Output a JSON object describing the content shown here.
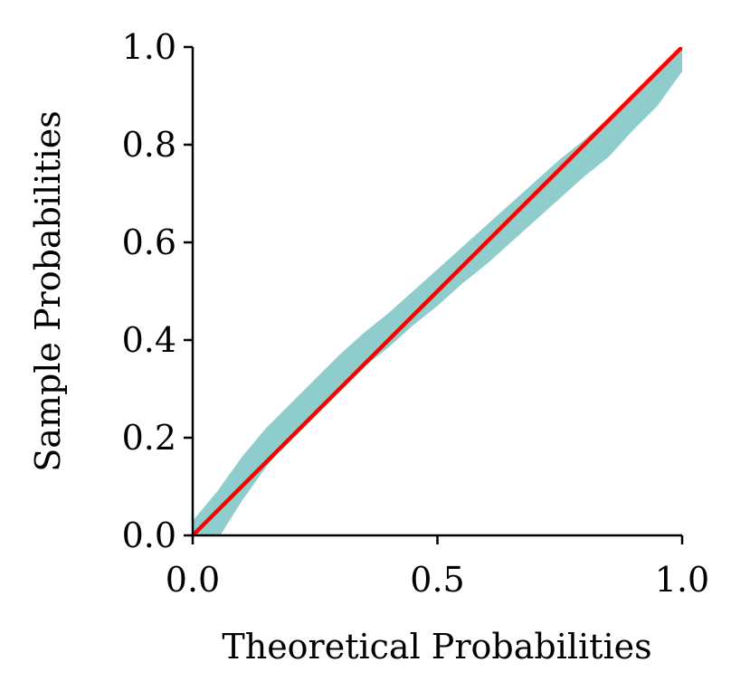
{
  "chart_data": {
    "type": "line",
    "title": "",
    "xlabel": "Theoretical Probabilities",
    "ylabel": "Sample Probabilities",
    "xlim": [
      0,
      1
    ],
    "ylim": [
      0,
      1
    ],
    "xticks": [
      "0.0",
      "0.5",
      "1.0"
    ],
    "yticks": [
      "0.0",
      "0.2",
      "0.4",
      "0.6",
      "0.8",
      "1.0"
    ],
    "grid": false,
    "band": {
      "color": "#8fcdcc",
      "x": [
        0.0,
        0.05,
        0.1,
        0.15,
        0.2,
        0.25,
        0.3,
        0.35,
        0.4,
        0.45,
        0.5,
        0.55,
        0.6,
        0.65,
        0.7,
        0.75,
        0.8,
        0.85,
        0.9,
        0.95,
        1.0
      ],
      "upper": [
        0.03,
        0.09,
        0.16,
        0.22,
        0.27,
        0.32,
        0.37,
        0.415,
        0.455,
        0.5,
        0.545,
        0.59,
        0.635,
        0.68,
        0.725,
        0.77,
        0.81,
        0.855,
        0.9,
        0.95,
        1.0
      ],
      "lower": [
        -0.02,
        -0.01,
        0.07,
        0.14,
        0.2,
        0.255,
        0.3,
        0.345,
        0.385,
        0.43,
        0.47,
        0.515,
        0.555,
        0.6,
        0.645,
        0.69,
        0.735,
        0.775,
        0.83,
        0.88,
        0.95
      ]
    },
    "reference_line": {
      "color": "#ff0000",
      "x": [
        0,
        1
      ],
      "y": [
        0,
        1
      ]
    }
  }
}
